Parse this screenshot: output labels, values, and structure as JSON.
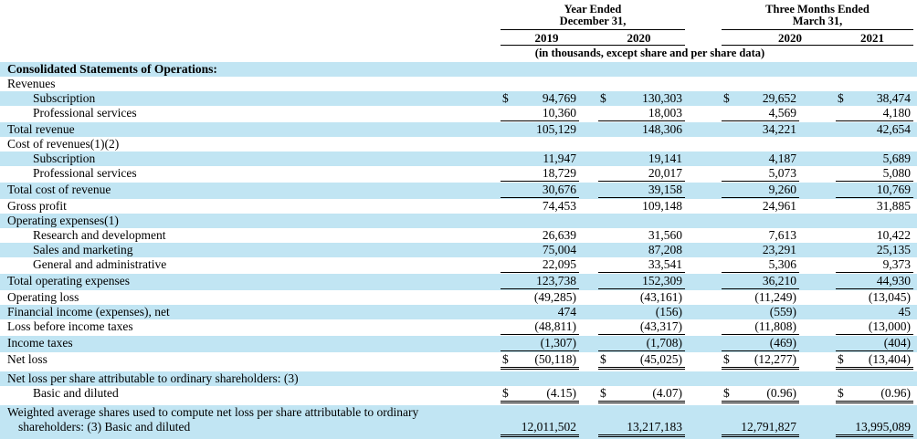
{
  "currency_symbol": "$",
  "colors": {
    "row_highlight": "#C1E5F3",
    "text": "#000000",
    "rule": "#000000"
  },
  "header": {
    "group1": {
      "line1": "Year Ended",
      "line2": "December 31,",
      "years": [
        "2019",
        "2020"
      ]
    },
    "group2": {
      "line1": "Three Months Ended",
      "line2": "March 31,",
      "years": [
        "2020",
        "2021"
      ]
    },
    "note": "(in thousands, except share and per share data)"
  },
  "table": {
    "rows": [
      {
        "label": "Consolidated Statements of Operations:",
        "indent": 0,
        "highlight": true,
        "bold": true,
        "dollar": false,
        "underline": "none",
        "values": [
          "",
          "",
          "",
          ""
        ]
      },
      {
        "label": "Revenues",
        "indent": 0,
        "highlight": false,
        "bold": false,
        "dollar": false,
        "underline": "none",
        "values": [
          "",
          "",
          "",
          ""
        ]
      },
      {
        "label": "Subscription",
        "indent": 1,
        "highlight": true,
        "bold": false,
        "dollar": true,
        "underline": "none",
        "values": [
          "94,769",
          "130,303",
          "29,652",
          "38,474"
        ]
      },
      {
        "label": "Professional services",
        "indent": 1,
        "highlight": false,
        "bold": false,
        "dollar": false,
        "underline": "single",
        "values": [
          "10,360",
          "18,003",
          "4,569",
          "4,180"
        ]
      },
      {
        "label": "Total revenue",
        "indent": 0,
        "highlight": true,
        "bold": false,
        "dollar": false,
        "underline": "none",
        "values": [
          "105,129",
          "148,306",
          "34,221",
          "42,654"
        ]
      },
      {
        "label": "Cost of revenues(1)(2)",
        "indent": 0,
        "highlight": false,
        "bold": false,
        "dollar": false,
        "underline": "none",
        "values": [
          "",
          "",
          "",
          ""
        ]
      },
      {
        "label": "Subscription",
        "indent": 1,
        "highlight": true,
        "bold": false,
        "dollar": false,
        "underline": "none",
        "values": [
          "11,947",
          "19,141",
          "4,187",
          "5,689"
        ]
      },
      {
        "label": "Professional services",
        "indent": 1,
        "highlight": false,
        "bold": false,
        "dollar": false,
        "underline": "single",
        "values": [
          "18,729",
          "20,017",
          "5,073",
          "5,080"
        ]
      },
      {
        "label": "Total cost of revenue",
        "indent": 0,
        "highlight": true,
        "bold": false,
        "dollar": false,
        "underline": "single",
        "values": [
          "30,676",
          "39,158",
          "9,260",
          "10,769"
        ]
      },
      {
        "label": "Gross profit",
        "indent": 0,
        "highlight": false,
        "bold": false,
        "dollar": false,
        "underline": "none",
        "values": [
          "74,453",
          "109,148",
          "24,961",
          "31,885"
        ]
      },
      {
        "label": "Operating expenses(1)",
        "indent": 0,
        "highlight": true,
        "bold": false,
        "dollar": false,
        "underline": "none",
        "values": [
          "",
          "",
          "",
          ""
        ]
      },
      {
        "label": "Research and development",
        "indent": 1,
        "highlight": false,
        "bold": false,
        "dollar": false,
        "underline": "none",
        "values": [
          "26,639",
          "31,560",
          "7,613",
          "10,422"
        ]
      },
      {
        "label": "Sales and marketing",
        "indent": 1,
        "highlight": true,
        "bold": false,
        "dollar": false,
        "underline": "none",
        "values": [
          "75,004",
          "87,208",
          "23,291",
          "25,135"
        ]
      },
      {
        "label": "General and administrative",
        "indent": 1,
        "highlight": false,
        "bold": false,
        "dollar": false,
        "underline": "single",
        "values": [
          "22,095",
          "33,541",
          "5,306",
          "9,373"
        ]
      },
      {
        "label": "Total operating expenses",
        "indent": 0,
        "highlight": true,
        "bold": false,
        "dollar": false,
        "underline": "single",
        "values": [
          "123,738",
          "152,309",
          "36,210",
          "44,930"
        ]
      },
      {
        "label": "Operating loss",
        "indent": 0,
        "highlight": false,
        "bold": false,
        "dollar": false,
        "underline": "none",
        "values": [
          "(49,285)",
          "(43,161)",
          "(11,249)",
          "(13,045)"
        ]
      },
      {
        "label": "Financial income (expenses), net",
        "indent": 0,
        "highlight": true,
        "bold": false,
        "dollar": false,
        "underline": "none",
        "values": [
          "474",
          "(156)",
          "(559)",
          "45"
        ]
      },
      {
        "label": "Loss before income taxes",
        "indent": 0,
        "highlight": false,
        "bold": false,
        "dollar": false,
        "underline": "single",
        "values": [
          "(48,811)",
          "(43,317)",
          "(11,808)",
          "(13,000)"
        ]
      },
      {
        "label": "Income taxes",
        "indent": 0,
        "highlight": true,
        "bold": false,
        "dollar": false,
        "underline": "single",
        "values": [
          "(1,307)",
          "(1,708)",
          "(469)",
          "(404)"
        ]
      },
      {
        "label": "Net loss",
        "indent": 0,
        "highlight": false,
        "bold": false,
        "dollar": true,
        "underline": "double",
        "values": [
          "(50,118)",
          "(45,025)",
          "(12,277)",
          "(13,404)"
        ]
      },
      {
        "label": "Net loss per share attributable to ordinary shareholders: (3)",
        "indent": 0,
        "highlight": true,
        "bold": false,
        "dollar": false,
        "underline": "none",
        "values": [
          "",
          "",
          "",
          ""
        ]
      },
      {
        "label": "Basic and diluted",
        "indent": 1,
        "highlight": false,
        "bold": false,
        "dollar": true,
        "underline": "double",
        "values": [
          "(4.15)",
          "(4.07)",
          "(0.96)",
          "(0.96)"
        ]
      },
      {
        "label": "Weighted average shares used to compute net loss per share attributable to ordinary shareholders: (3) Basic and diluted",
        "indent": 0,
        "highlight": true,
        "bold": false,
        "dollar": false,
        "underline": "double",
        "hanging": true,
        "values": [
          "12,011,502",
          "13,217,183",
          "12,791,827",
          "13,995,089"
        ]
      }
    ]
  }
}
